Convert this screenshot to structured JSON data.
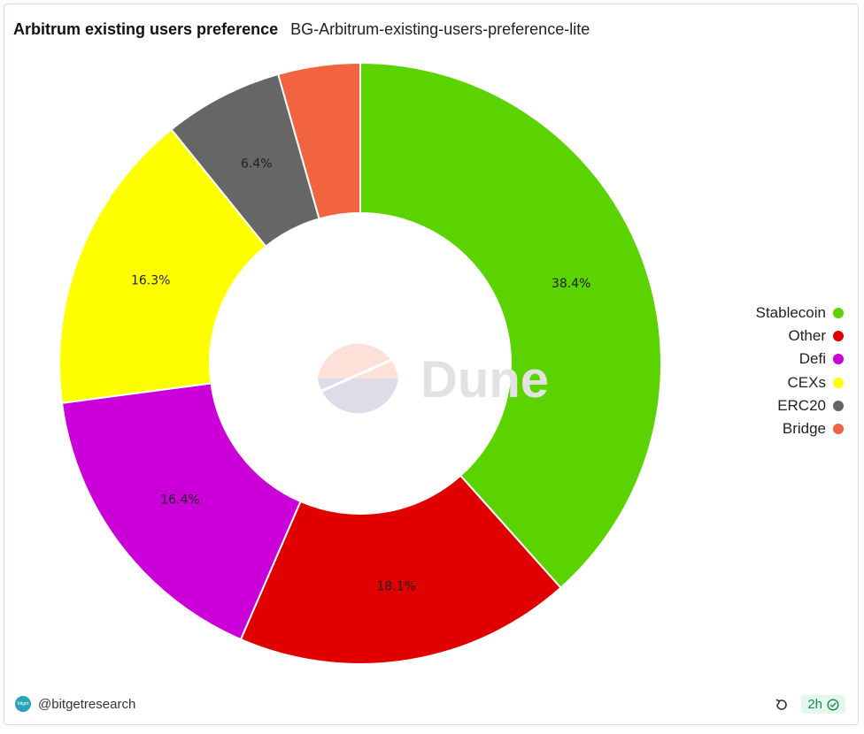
{
  "header": {
    "title": "Arbitrum existing users preference",
    "subtitle": "BG-Arbitrum-existing-users-preference-lite"
  },
  "watermark": {
    "text": "Dune"
  },
  "footer": {
    "author": "@bitgetresearch",
    "avatar_text": "bitget",
    "age": "2h",
    "icons": {
      "refresh": "refresh-icon",
      "check": "check-circle-icon"
    }
  },
  "chart_data": {
    "type": "pie",
    "donut": true,
    "legend_position": "right",
    "slices": [
      {
        "label": "Stablecoin",
        "value": 38.4,
        "display": "38.4%",
        "color": "#5bd300"
      },
      {
        "label": "Other",
        "value": 18.1,
        "display": "18.1%",
        "color": "#e00000"
      },
      {
        "label": "Defi",
        "value": 16.4,
        "display": "16.4%",
        "color": "#cb00d8"
      },
      {
        "label": "CEXs",
        "value": 16.3,
        "display": "16.3%",
        "color": "#ffff00"
      },
      {
        "label": "ERC20",
        "value": 6.4,
        "display": "6.4%",
        "color": "#666666"
      },
      {
        "label": "Bridge",
        "value": 4.4,
        "display": "",
        "color": "#f26340"
      }
    ]
  }
}
